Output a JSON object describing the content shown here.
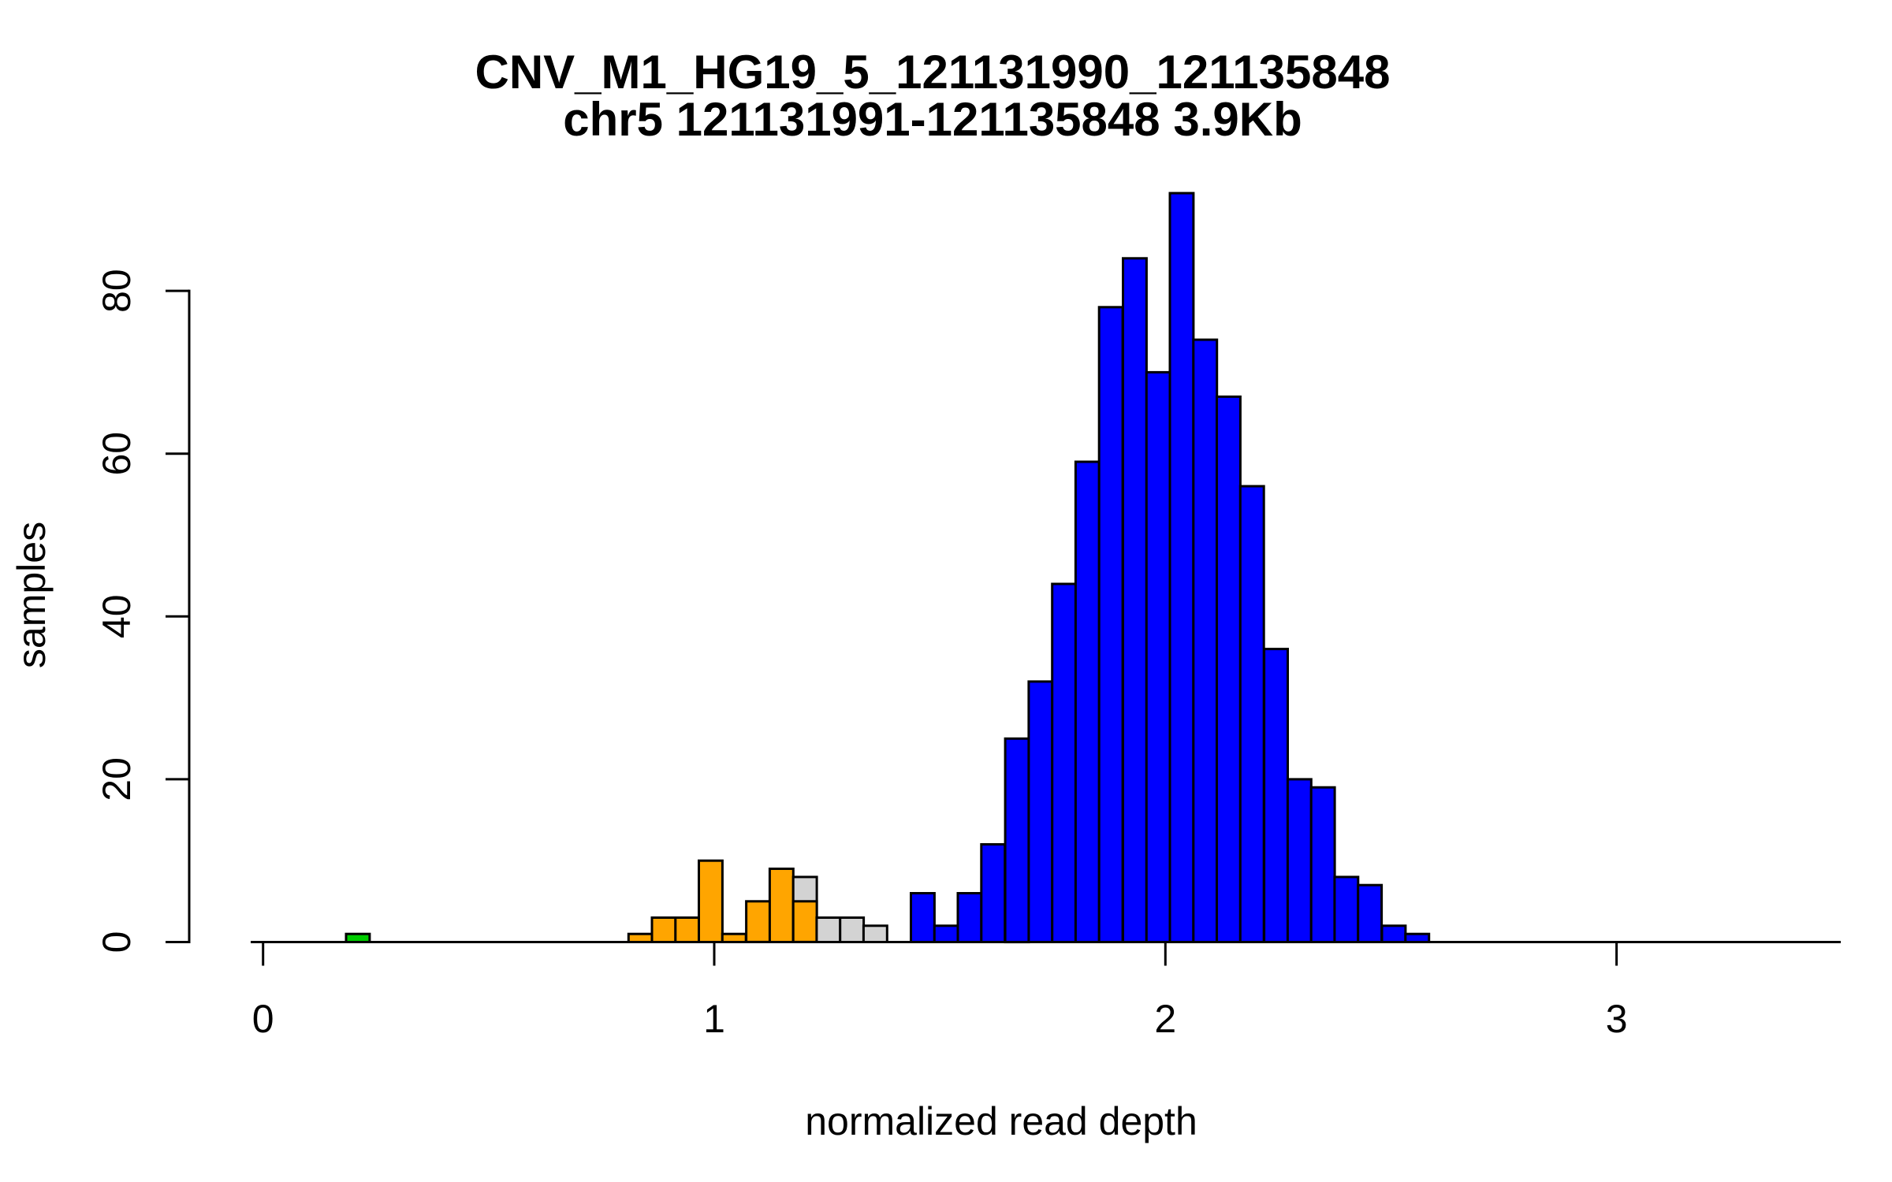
{
  "chart_data": {
    "type": "bar",
    "subtype": "histogram-overlaid",
    "title": "CNV_M1_HG19_5_121131990_121135848",
    "subtitle": "chr5 121131991-121135848 3.9Kb",
    "xlabel": "normalized read depth",
    "ylabel": "samples",
    "x_ticks": [
      0,
      1,
      2,
      3
    ],
    "y_ticks": [
      0,
      20,
      40,
      60,
      80
    ],
    "xlim": [
      -0.03,
      3.33
    ],
    "ylim": [
      0,
      92
    ],
    "grid": false,
    "legend": "none",
    "bin_width": 0.0522,
    "bar_border_color": "#000000",
    "colors": {
      "green": "#00CD00",
      "orange": "#FFA500",
      "gray": "#D3D3D3",
      "blue": "#0000FF"
    },
    "bars": [
      {
        "x": 0.184,
        "count": 1,
        "color": "green"
      },
      {
        "x": 0.81,
        "count": 1,
        "color": "orange"
      },
      {
        "x": 0.862,
        "count": 3,
        "color": "orange"
      },
      {
        "x": 0.914,
        "count": 3,
        "color": "orange"
      },
      {
        "x": 0.966,
        "count": 10,
        "color": "orange"
      },
      {
        "x": 1.018,
        "count": 1,
        "color": "orange"
      },
      {
        "x": 1.071,
        "count": 5,
        "color": "orange"
      },
      {
        "x": 1.123,
        "count": 9,
        "color": "orange"
      },
      {
        "x": 1.175,
        "count": 8,
        "color": "gray"
      },
      {
        "x": 1.175,
        "count": 5,
        "color": "orange"
      },
      {
        "x": 1.227,
        "count": 3,
        "color": "gray"
      },
      {
        "x": 1.279,
        "count": 3,
        "color": "gray"
      },
      {
        "x": 1.331,
        "count": 2,
        "color": "gray"
      },
      {
        "x": 1.436,
        "count": 6,
        "color": "blue"
      },
      {
        "x": 1.488,
        "count": 2,
        "color": "blue"
      },
      {
        "x": 1.54,
        "count": 6,
        "color": "blue"
      },
      {
        "x": 1.592,
        "count": 12,
        "color": "blue"
      },
      {
        "x": 1.645,
        "count": 25,
        "color": "blue"
      },
      {
        "x": 1.697,
        "count": 32,
        "color": "blue"
      },
      {
        "x": 1.749,
        "count": 44,
        "color": "blue"
      },
      {
        "x": 1.801,
        "count": 59,
        "color": "blue"
      },
      {
        "x": 1.853,
        "count": 78,
        "color": "blue"
      },
      {
        "x": 1.906,
        "count": 84,
        "color": "blue"
      },
      {
        "x": 1.958,
        "count": 70,
        "color": "blue"
      },
      {
        "x": 2.01,
        "count": 92,
        "color": "blue"
      },
      {
        "x": 2.062,
        "count": 74,
        "color": "blue"
      },
      {
        "x": 2.114,
        "count": 67,
        "color": "blue"
      },
      {
        "x": 2.166,
        "count": 56,
        "color": "blue"
      },
      {
        "x": 2.219,
        "count": 36,
        "color": "blue"
      },
      {
        "x": 2.271,
        "count": 20,
        "color": "blue"
      },
      {
        "x": 2.323,
        "count": 19,
        "color": "blue"
      },
      {
        "x": 2.375,
        "count": 8,
        "color": "blue"
      },
      {
        "x": 2.427,
        "count": 7,
        "color": "blue"
      },
      {
        "x": 2.48,
        "count": 2,
        "color": "blue"
      },
      {
        "x": 2.532,
        "count": 1,
        "color": "blue"
      }
    ]
  }
}
